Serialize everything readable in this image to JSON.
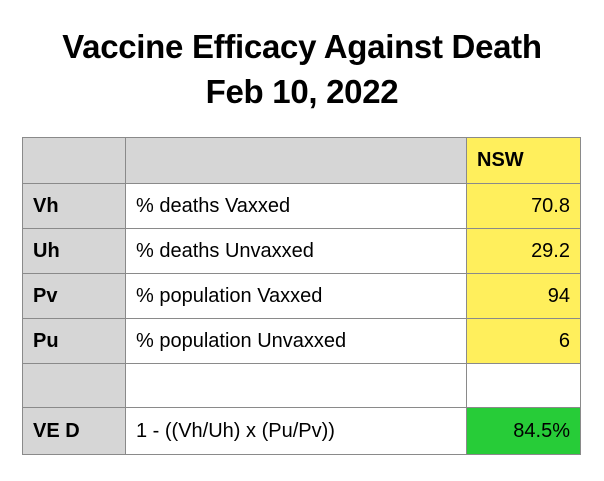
{
  "title": {
    "line1": "Vaccine Efficacy Against Death",
    "line2": "Feb 10, 2022"
  },
  "colors": {
    "header_gray": "#d6d6d6",
    "value_yellow": "#ffef5c",
    "result_green": "#27cc38",
    "border": "#8a8a8a"
  },
  "table": {
    "header": {
      "key": "",
      "description": "",
      "region": "NSW"
    },
    "rows": [
      {
        "key": "Vh",
        "description": "% deaths Vaxxed",
        "value": "70.8"
      },
      {
        "key": "Uh",
        "description": "% deaths Unvaxxed",
        "value": "29.2"
      },
      {
        "key": "Pv",
        "description": "% population Vaxxed",
        "value": "94"
      },
      {
        "key": "Pu",
        "description": "% population Unvaxxed",
        "value": "6"
      },
      {
        "key": "",
        "description": "",
        "value": ""
      }
    ],
    "result": {
      "key": "VE D",
      "description": "1 - ((Vh/Uh) x (Pu/Pv))",
      "value": "84.5%"
    }
  }
}
